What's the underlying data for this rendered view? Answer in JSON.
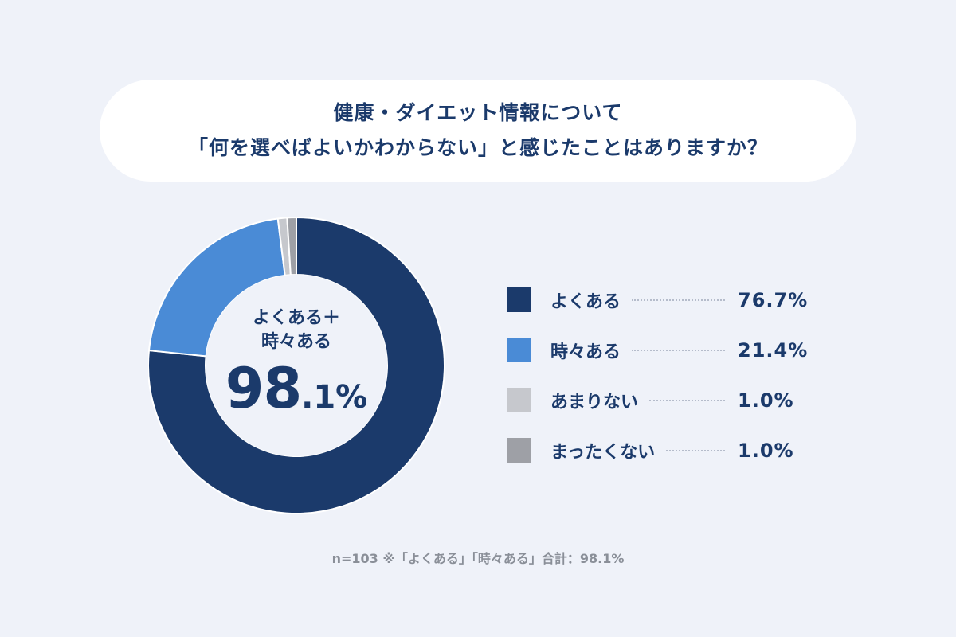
{
  "title": {
    "line1": "健康・ダイエット情報について",
    "line2": "「何を選べばよいかわからない」と感じたことはありますか？"
  },
  "center": {
    "label_line1": "よくある＋",
    "label_line2": "時々ある",
    "value_int": "98",
    "value_dec": ".1%"
  },
  "legend": [
    {
      "label": "よくある",
      "value": "76.7%",
      "color": "#1b3a6b"
    },
    {
      "label": "時々ある",
      "value": "21.4%",
      "color": "#4a8bd6"
    },
    {
      "label": "あまりない",
      "value": "1.0%",
      "color": "#c6c8cd"
    },
    {
      "label": "まったくない",
      "value": "1.0%",
      "color": "#9ea0a6"
    }
  ],
  "footnote": "n=103 ※「よくある」「時々ある」合計：98.1%",
  "chart_data": {
    "type": "pie",
    "variant": "donut",
    "title": "健康・ダイエット情報について「何を選べばよいかわからない」と感じたことはありますか？",
    "categories": [
      "よくある",
      "時々ある",
      "あまりない",
      "まったくない"
    ],
    "values": [
      76.7,
      21.4,
      1.0,
      1.0
    ],
    "colors": [
      "#1b3a6b",
      "#4a8bd6",
      "#c6c8cd",
      "#9ea0a6"
    ],
    "center_annotation": "よくある＋時々ある 98.1%",
    "legend_position": "right",
    "sample_size": "n=103"
  }
}
